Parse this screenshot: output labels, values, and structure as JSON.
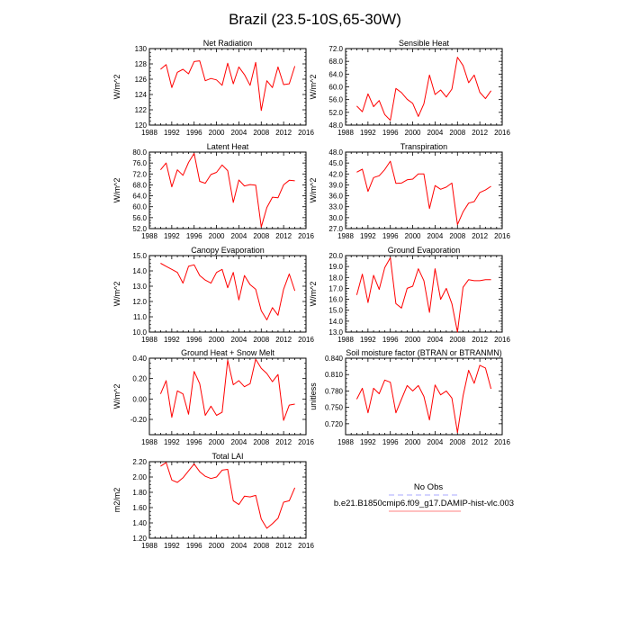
{
  "figure": {
    "title": "Brazil (23.5-10S,65-30W)"
  },
  "legend": {
    "entries": [
      {
        "label": "No Obs",
        "color": "#a9a9ff",
        "dash": true
      },
      {
        "label": "b.e21.B1850cmip6.f09_g17.DAMIP-hist-vlc.003",
        "color": "#ff8080",
        "dash": false
      }
    ]
  },
  "chart_data": [
    {
      "type": "line",
      "title": "Net Radiation",
      "ylabel": "W/m^2",
      "xlim": [
        1988,
        2016
      ],
      "ylim": [
        120,
        130
      ],
      "xticks": [
        1988,
        1992,
        1996,
        2000,
        2004,
        2008,
        2012,
        2016
      ],
      "yticks": [
        "120",
        "122",
        "124",
        "126",
        "128",
        "130"
      ],
      "series": [
        {
          "color": "#ff0000",
          "x": [
            1990,
            1991,
            1992,
            1993,
            1994,
            1995,
            1996,
            1997,
            1998,
            1999,
            2000,
            2001,
            2002,
            2003,
            2004,
            2005,
            2006,
            2007,
            2008,
            2009,
            2010,
            2011,
            2012,
            2013,
            2014
          ],
          "y": [
            127.3,
            127.9,
            124.9,
            126.9,
            127.3,
            126.7,
            128.3,
            128.4,
            125.8,
            126.1,
            125.9,
            125.2,
            128.1,
            125.4,
            127.6,
            126.6,
            125.2,
            128.2,
            121.9,
            125.8,
            124.9,
            127.6,
            125.3,
            125.4,
            127.7
          ]
        }
      ]
    },
    {
      "type": "line",
      "title": "Sensible Heat",
      "ylabel": "W/m^2",
      "xlim": [
        1988,
        2016
      ],
      "ylim": [
        48,
        72
      ],
      "xticks": [
        1988,
        1992,
        1996,
        2000,
        2004,
        2008,
        2012,
        2016
      ],
      "yticks": [
        "48.0",
        "52.0",
        "56.0",
        "60.0",
        "64.0",
        "68.0",
        "72.0"
      ],
      "series": [
        {
          "color": "#ff0000",
          "x": [
            1990,
            1991,
            1992,
            1993,
            1994,
            1995,
            1996,
            1997,
            1998,
            1999,
            2000,
            2001,
            2002,
            2003,
            2004,
            2005,
            2006,
            2007,
            2008,
            2009,
            2010,
            2011,
            2012,
            2013,
            2014
          ],
          "y": [
            54.0,
            52.2,
            57.8,
            53.8,
            55.7,
            51.3,
            49.5,
            59.5,
            58.2,
            56.1,
            54.8,
            50.7,
            54.7,
            63.7,
            57.6,
            59.0,
            56.8,
            59.3,
            69.3,
            66.7,
            61.3,
            63.7,
            58.3,
            56.3,
            58.8
          ]
        }
      ]
    },
    {
      "type": "line",
      "title": "Latent Heat",
      "ylabel": "W/m^2",
      "xlim": [
        1988,
        2016
      ],
      "ylim": [
        52,
        80
      ],
      "xticks": [
        1988,
        1992,
        1996,
        2000,
        2004,
        2008,
        2012,
        2016
      ],
      "yticks": [
        "52.0",
        "56.0",
        "60.0",
        "64.0",
        "68.0",
        "72.0",
        "76.0",
        "80.0"
      ],
      "series": [
        {
          "color": "#ff0000",
          "x": [
            1990,
            1991,
            1992,
            1993,
            1994,
            1995,
            1996,
            1997,
            1998,
            1999,
            2000,
            2001,
            2002,
            2003,
            2004,
            2005,
            2006,
            2007,
            2008,
            2009,
            2010,
            2011,
            2012,
            2013,
            2014
          ],
          "y": [
            73.5,
            76.0,
            67.3,
            73.5,
            71.5,
            76.2,
            79.5,
            69.3,
            68.6,
            71.8,
            72.6,
            75.3,
            73.2,
            61.6,
            69.8,
            67.6,
            68.1,
            67.9,
            52.6,
            59.7,
            63.5,
            63.3,
            68.0,
            69.7,
            69.5
          ]
        }
      ]
    },
    {
      "type": "line",
      "title": "Transpiration",
      "ylabel": "W/m^2",
      "xlim": [
        1988,
        2016
      ],
      "ylim": [
        27,
        48
      ],
      "xticks": [
        1988,
        1992,
        1996,
        2000,
        2004,
        2008,
        2012,
        2016
      ],
      "yticks": [
        "27.0",
        "30.0",
        "33.0",
        "36.0",
        "39.0",
        "42.0",
        "45.0",
        "48.0"
      ],
      "series": [
        {
          "color": "#ff0000",
          "x": [
            1990,
            1991,
            1992,
            1993,
            1994,
            1995,
            1996,
            1997,
            1998,
            1999,
            2000,
            2001,
            2002,
            2003,
            2004,
            2005,
            2006,
            2007,
            2008,
            2009,
            2010,
            2011,
            2012,
            2013,
            2014
          ],
          "y": [
            42.5,
            43.3,
            37.2,
            41.0,
            41.5,
            43.2,
            45.5,
            39.4,
            39.5,
            40.4,
            40.6,
            42.0,
            42.0,
            32.5,
            38.8,
            37.8,
            38.4,
            39.5,
            28.1,
            31.6,
            34.0,
            34.4,
            36.9,
            37.6,
            38.6
          ]
        }
      ]
    },
    {
      "type": "line",
      "title": "Canopy Evaporation",
      "ylabel": "W/m^2",
      "xlim": [
        1988,
        2016
      ],
      "ylim": [
        10,
        15
      ],
      "xticks": [
        1988,
        1992,
        1996,
        2000,
        2004,
        2008,
        2012,
        2016
      ],
      "yticks": [
        "10.0",
        "11.0",
        "12.0",
        "13.0",
        "14.0",
        "15.0"
      ],
      "series": [
        {
          "color": "#ff0000",
          "x": [
            1990,
            1991,
            1992,
            1993,
            1994,
            1995,
            1996,
            1997,
            1998,
            1999,
            2000,
            2001,
            2002,
            2003,
            2004,
            2005,
            2006,
            2007,
            2008,
            2009,
            2010,
            2011,
            2012,
            2013,
            2014
          ],
          "y": [
            14.5,
            14.3,
            14.1,
            13.9,
            13.2,
            14.3,
            14.4,
            13.7,
            13.4,
            13.2,
            13.9,
            14.1,
            12.9,
            13.9,
            12.1,
            13.7,
            13.1,
            12.8,
            11.4,
            10.8,
            11.6,
            11.1,
            12.8,
            13.8,
            12.7
          ]
        }
      ]
    },
    {
      "type": "line",
      "title": "Ground Evaporation",
      "ylabel": "W/m^2",
      "xlim": [
        1988,
        2016
      ],
      "ylim": [
        13,
        20
      ],
      "xticks": [
        1988,
        1992,
        1996,
        2000,
        2004,
        2008,
        2012,
        2016
      ],
      "yticks": [
        "13.0",
        "14.0",
        "15.0",
        "16.0",
        "17.0",
        "18.0",
        "19.0",
        "20.0"
      ],
      "series": [
        {
          "color": "#ff0000",
          "x": [
            1990,
            1991,
            1992,
            1993,
            1994,
            1995,
            1996,
            1997,
            1998,
            1999,
            2000,
            2001,
            2002,
            2003,
            2004,
            2005,
            2006,
            2007,
            2008,
            2009,
            2010,
            2011,
            2012,
            2013,
            2014
          ],
          "y": [
            16.4,
            18.3,
            15.7,
            18.2,
            16.9,
            18.9,
            19.8,
            15.6,
            15.2,
            17.0,
            17.2,
            18.8,
            17.7,
            14.8,
            18.8,
            16.0,
            17.0,
            15.6,
            13.0,
            17.1,
            17.8,
            17.7,
            17.7,
            17.8,
            17.8
          ]
        }
      ]
    },
    {
      "type": "line",
      "title": "Ground Heat + Snow Melt",
      "ylabel": "W/m^2",
      "xlim": [
        1988,
        2016
      ],
      "ylim": [
        -0.35,
        0.4
      ],
      "xticks": [
        1988,
        1992,
        1996,
        2000,
        2004,
        2008,
        2012,
        2016
      ],
      "yticks": [
        "-0.20",
        "0.00",
        "0.20",
        "0.40"
      ],
      "ytickvals": [
        -0.2,
        0.0,
        0.2,
        0.4
      ],
      "series": [
        {
          "color": "#ff0000",
          "x": [
            1990,
            1991,
            1992,
            1993,
            1994,
            1995,
            1996,
            1997,
            1998,
            1999,
            2000,
            2001,
            2002,
            2003,
            2004,
            2005,
            2006,
            2007,
            2008,
            2009,
            2010,
            2011,
            2012,
            2013,
            2014
          ],
          "y": [
            0.05,
            0.18,
            -0.18,
            0.08,
            0.05,
            -0.15,
            0.27,
            0.15,
            -0.16,
            -0.07,
            -0.16,
            -0.13,
            0.38,
            0.14,
            0.18,
            0.12,
            0.15,
            0.39,
            0.3,
            0.25,
            0.17,
            0.24,
            -0.21,
            -0.06,
            -0.05
          ]
        }
      ]
    },
    {
      "type": "line",
      "title": "Soil moisture factor (BTRAN or BTRANMN)",
      "ylabel": "unitless",
      "xlim": [
        1988,
        2016
      ],
      "ylim": [
        0.7,
        0.84
      ],
      "xticks": [
        1988,
        1992,
        1996,
        2000,
        2004,
        2008,
        2012,
        2016
      ],
      "yticks": [
        "0.720",
        "0.750",
        "0.780",
        "0.810",
        "0.840"
      ],
      "ytickvals": [
        0.72,
        0.75,
        0.78,
        0.81,
        0.84
      ],
      "series": [
        {
          "color": "#ff0000",
          "x": [
            1990,
            1991,
            1992,
            1993,
            1994,
            1995,
            1996,
            1997,
            1998,
            1999,
            2000,
            2001,
            2002,
            2003,
            2004,
            2005,
            2006,
            2007,
            2008,
            2009,
            2010,
            2011,
            2012,
            2013,
            2014
          ],
          "y": [
            0.765,
            0.785,
            0.74,
            0.785,
            0.775,
            0.8,
            0.796,
            0.74,
            0.765,
            0.79,
            0.78,
            0.79,
            0.77,
            0.727,
            0.791,
            0.773,
            0.78,
            0.767,
            0.704,
            0.771,
            0.818,
            0.794,
            0.827,
            0.822,
            0.784
          ]
        }
      ]
    },
    {
      "type": "line",
      "title": "Total LAI",
      "ylabel": "m2/m2",
      "xlim": [
        1988,
        2016
      ],
      "ylim": [
        1.2,
        2.2
      ],
      "xticks": [
        1988,
        1992,
        1996,
        2000,
        2004,
        2008,
        2012,
        2016
      ],
      "yticks": [
        "1.20",
        "1.40",
        "1.60",
        "1.80",
        "2.00",
        "2.20"
      ],
      "series": [
        {
          "color": "#ff0000",
          "x": [
            1990,
            1991,
            1992,
            1993,
            1994,
            1995,
            1996,
            1997,
            1998,
            1999,
            2000,
            2001,
            2002,
            2003,
            2004,
            2005,
            2006,
            2007,
            2008,
            2009,
            2010,
            2011,
            2012,
            2013,
            2014
          ],
          "y": [
            2.14,
            2.19,
            1.96,
            1.93,
            1.99,
            2.08,
            2.17,
            2.07,
            2.01,
            1.98,
            2.0,
            2.09,
            2.1,
            1.69,
            1.64,
            1.75,
            1.74,
            1.76,
            1.45,
            1.33,
            1.39,
            1.46,
            1.67,
            1.69,
            1.86
          ]
        }
      ]
    }
  ]
}
